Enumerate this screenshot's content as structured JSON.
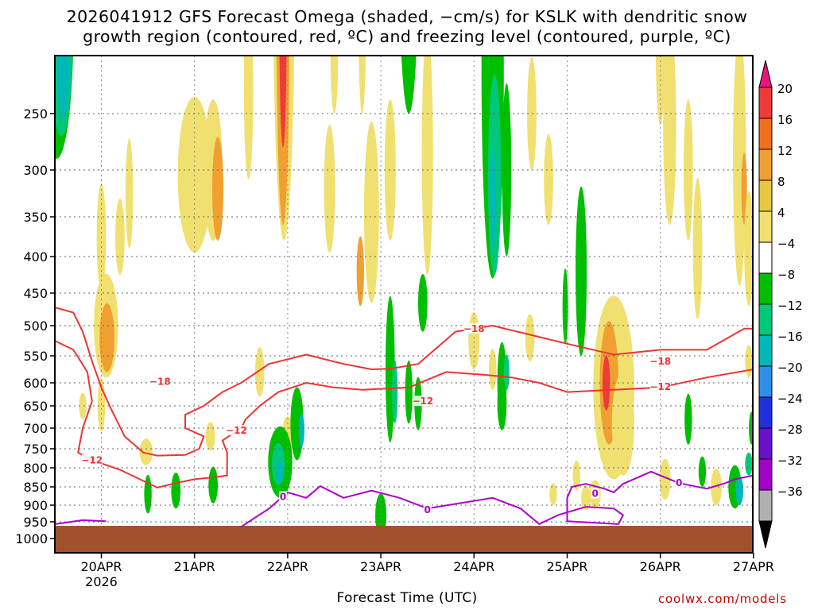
{
  "title_line1": "2026041912 GFS Forecast Omega (shaded, −cm/s) for KSLK with dendritic snow",
  "title_line2": "growth region (contoured, red, ºC) and freezing level (contoured, purple, ºC)",
  "xlabel": "Forecast Time (UTC)",
  "credit": "coolwx.com/models",
  "chart_data": {
    "type": "heatmap",
    "title": "2026041912 GFS Forecast Omega (shaded, −cm/s) for KSLK with dendritic snow growth region (contoured, red, ºC) and freezing level (contoured, purple, ºC)",
    "xlabel": "Forecast Time (UTC)",
    "ylabel": "",
    "x_ticks": [
      "20APR",
      "21APR",
      "22APR",
      "23APR",
      "24APR",
      "25APR",
      "26APR",
      "27APR"
    ],
    "x_year": "2026",
    "x_range_days": [
      -0.5,
      7.0
    ],
    "y_ticks": [
      250,
      300,
      350,
      400,
      450,
      500,
      550,
      600,
      650,
      700,
      750,
      800,
      850,
      900,
      950,
      1000
    ],
    "y_range_hPa": [
      200,
      1025
    ],
    "grid": true,
    "colorbar": {
      "labels": [
        "20",
        "16",
        "12",
        "8",
        "4",
        "−4",
        "−8",
        "−12",
        "−16",
        "−20",
        "−24",
        "−28",
        "−32",
        "−36"
      ],
      "colors": [
        "#e8157a",
        "#f03a3a",
        "#f07020",
        "#f0a030",
        "#e8c840",
        "#f0e070",
        "#ffffff",
        "#00bf00",
        "#00c87a",
        "#00b8b8",
        "#2e8ee8",
        "#2030e0",
        "#6a10c8",
        "#a000c8",
        "#b0b0b0",
        "#000000"
      ]
    },
    "ground_color": "#a0522d",
    "contour_colors": {
      "dendritic": "#ee3333",
      "freezing": "#aa00cc"
    },
    "contour_labels": [
      {
        "text": "−18",
        "x": 0.63,
        "p": 598
      },
      {
        "text": "−12",
        "x": 1.45,
        "p": 706
      },
      {
        "text": "−12",
        "x": -0.1,
        "p": 780
      },
      {
        "text": "−12",
        "x": 3.45,
        "p": 640
      },
      {
        "text": "−18",
        "x": 4.0,
        "p": 505
      },
      {
        "text": "−18",
        "x": 6.0,
        "p": 560
      },
      {
        "text": "−12",
        "x": 6.0,
        "p": 609
      },
      {
        "text": "0",
        "x": 1.95,
        "p": 877
      },
      {
        "text": "0",
        "x": 3.5,
        "p": 914
      },
      {
        "text": "0",
        "x": 5.3,
        "p": 869
      },
      {
        "text": "0",
        "x": 6.2,
        "p": 840
      }
    ],
    "contours": [
      {
        "name": "−18 dendritic",
        "color": "#ee3333",
        "points": [
          [
            -0.5,
            472
          ],
          [
            -0.3,
            480
          ],
          [
            -0.2,
            510
          ],
          [
            -0.1,
            560
          ],
          [
            0.0,
            610
          ],
          [
            0.1,
            655
          ],
          [
            0.25,
            720
          ],
          [
            0.45,
            760
          ],
          [
            0.6,
            768
          ],
          [
            0.9,
            766
          ],
          [
            1.05,
            750
          ],
          [
            1.1,
            720
          ],
          [
            0.9,
            700
          ],
          [
            0.9,
            670
          ],
          [
            1.1,
            650
          ],
          [
            1.3,
            620
          ],
          [
            1.5,
            600
          ],
          [
            1.8,
            565
          ],
          [
            2.2,
            548
          ],
          [
            2.6,
            565
          ],
          [
            2.9,
            575
          ],
          [
            3.1,
            574
          ],
          [
            3.4,
            565
          ],
          [
            3.8,
            510
          ],
          [
            4.2,
            500
          ],
          [
            4.6,
            515
          ],
          [
            5.0,
            530
          ],
          [
            5.5,
            548
          ],
          [
            6.0,
            540
          ],
          [
            6.5,
            540
          ],
          [
            6.9,
            505
          ],
          [
            7.0,
            505
          ]
        ]
      },
      {
        "name": "−12 dendritic",
        "color": "#ee3333",
        "points": [
          [
            -0.5,
            525
          ],
          [
            -0.3,
            540
          ],
          [
            -0.15,
            580
          ],
          [
            -0.1,
            640
          ],
          [
            -0.2,
            700
          ],
          [
            -0.25,
            760
          ],
          [
            -0.1,
            780
          ],
          [
            0.2,
            805
          ],
          [
            0.6,
            852
          ],
          [
            0.8,
            840
          ],
          [
            1.0,
            830
          ],
          [
            1.2,
            825
          ],
          [
            1.35,
            820
          ],
          [
            1.35,
            760
          ],
          [
            1.3,
            730
          ],
          [
            1.5,
            700
          ],
          [
            1.55,
            680
          ],
          [
            1.7,
            650
          ],
          [
            1.9,
            620
          ],
          [
            2.2,
            600
          ],
          [
            2.5,
            610
          ],
          [
            2.8,
            615
          ],
          [
            3.3,
            610
          ],
          [
            3.7,
            580
          ],
          [
            4.1,
            585
          ],
          [
            4.4,
            590
          ],
          [
            4.7,
            600
          ],
          [
            5.0,
            620
          ],
          [
            5.5,
            615
          ],
          [
            6.0,
            610
          ],
          [
            6.5,
            590
          ],
          [
            7.0,
            575
          ]
        ]
      },
      {
        "name": "0 freezing",
        "color": "#aa00cc",
        "points": [
          [
            -0.5,
            957
          ],
          [
            -0.2,
            945
          ],
          [
            0.05,
            948
          ]
        ]
      },
      {
        "name": "0 freezing",
        "color": "#aa00cc",
        "points": [
          [
            1.5,
            965
          ],
          [
            1.8,
            910
          ],
          [
            2.0,
            865
          ],
          [
            2.2,
            880
          ],
          [
            2.35,
            848
          ],
          [
            2.6,
            880
          ],
          [
            2.9,
            860
          ],
          [
            3.2,
            880
          ],
          [
            3.5,
            910
          ],
          [
            4.2,
            880
          ],
          [
            4.5,
            910
          ],
          [
            4.7,
            957
          ],
          [
            4.9,
            930
          ],
          [
            5.2,
            905
          ],
          [
            5.5,
            910
          ],
          [
            5.6,
            930
          ],
          [
            5.55,
            957
          ],
          [
            5.0,
            948
          ],
          [
            5.0,
            880
          ],
          [
            5.05,
            850
          ],
          [
            5.2,
            842
          ],
          [
            5.4,
            855
          ],
          [
            5.5,
            865
          ],
          [
            5.6,
            842
          ],
          [
            5.9,
            810
          ],
          [
            6.2,
            840
          ],
          [
            6.5,
            855
          ],
          [
            6.7,
            840
          ],
          [
            6.8,
            830
          ],
          [
            7.0,
            820
          ]
        ]
      }
    ]
  }
}
